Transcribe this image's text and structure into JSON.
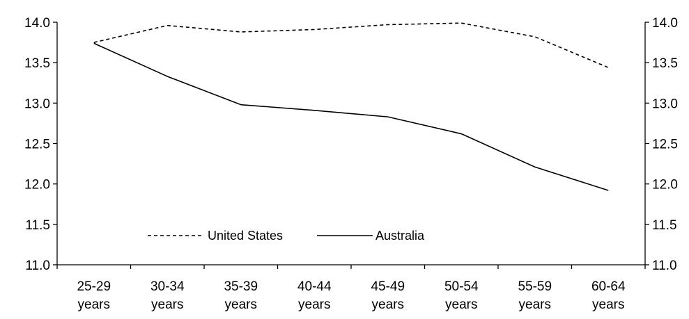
{
  "chart_data": {
    "type": "line",
    "categories": [
      [
        "25-29",
        "years"
      ],
      [
        "30-34",
        "years"
      ],
      [
        "35-39",
        "years"
      ],
      [
        "40-44",
        "years"
      ],
      [
        "45-49",
        "years"
      ],
      [
        "50-54",
        "years"
      ],
      [
        "55-59",
        "years"
      ],
      [
        "60-64",
        "years"
      ]
    ],
    "series": [
      {
        "name": "United States",
        "style": "dashed",
        "color": "#000000",
        "values": [
          13.75,
          13.96,
          13.88,
          13.91,
          13.97,
          13.99,
          13.82,
          13.44
        ]
      },
      {
        "name": "Australia",
        "style": "solid",
        "color": "#000000",
        "values": [
          13.74,
          13.33,
          12.98,
          12.91,
          12.83,
          12.62,
          12.21,
          11.92
        ]
      }
    ],
    "ylim": [
      11.0,
      14.0
    ],
    "yticks": [
      "11.0",
      "11.5",
      "12.0",
      "12.5",
      "13.0",
      "13.5",
      "14.0"
    ],
    "y2ticks": [
      "11.0",
      "11.5",
      "12.0",
      "12.5",
      "13.0",
      "13.5",
      "14.0"
    ],
    "grid": false,
    "legend_position": "bottom-left inside"
  }
}
